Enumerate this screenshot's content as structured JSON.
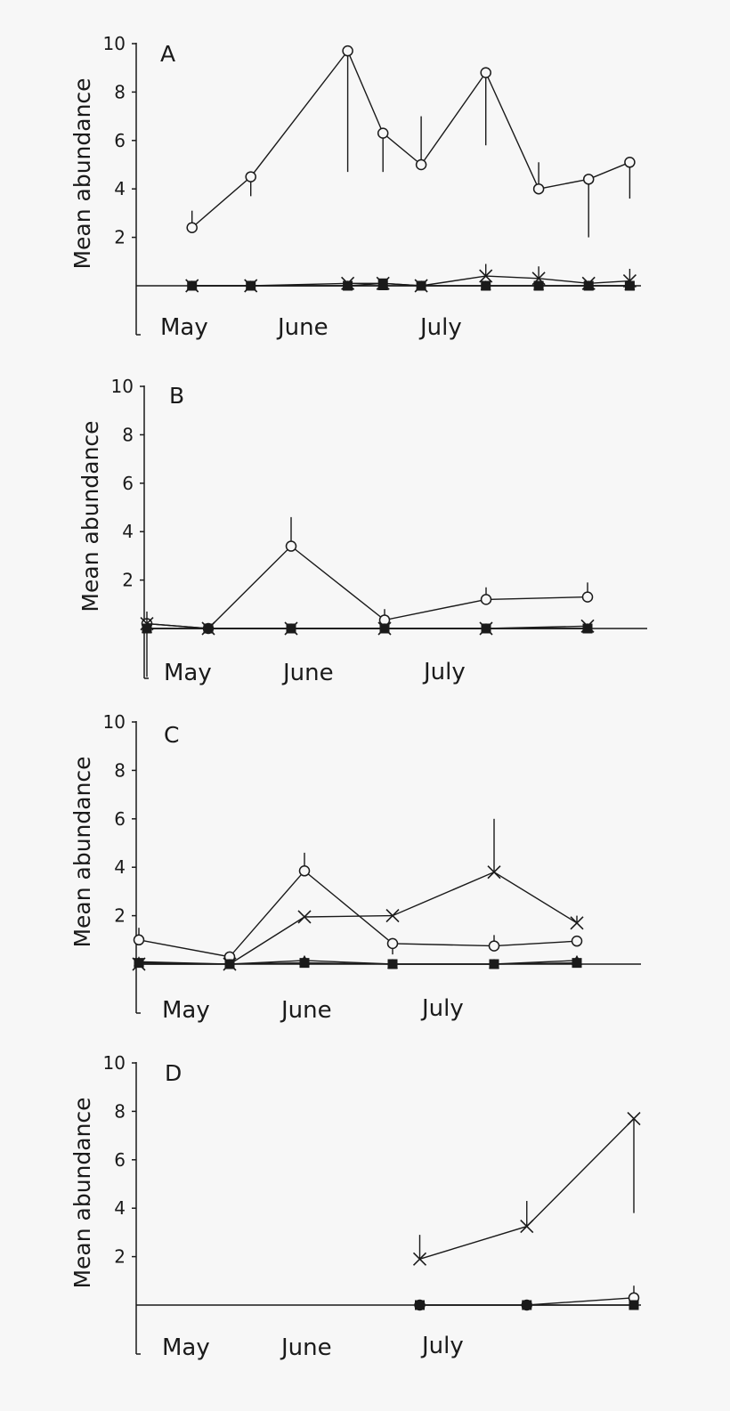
{
  "chart_data": [
    {
      "type": "line",
      "panel": "A",
      "ylabel": "Mean  abundance",
      "yticks": [
        2,
        4,
        6,
        8,
        10
      ],
      "ylim": [
        -2,
        10
      ],
      "months": [
        "May",
        "June",
        "July"
      ],
      "series": [
        {
          "name": "circle",
          "marker": "circle",
          "points": [
            [
              19,
              2.4
            ],
            [
              39,
              4.5
            ],
            [
              72,
              9.7
            ],
            [
              84,
              6.3
            ],
            [
              97,
              5.0
            ],
            [
              119,
              8.8
            ],
            [
              137,
              4.0
            ],
            [
              154,
              4.4
            ],
            [
              168,
              5.1
            ]
          ],
          "errors": [
            [
              19,
              3.1
            ],
            [
              39,
              3.7
            ],
            [
              72,
              4.7
            ],
            [
              84,
              4.7
            ],
            [
              97,
              7.0
            ],
            [
              119,
              5.8
            ],
            [
              137,
              5.1
            ],
            [
              154,
              2.0
            ],
            [
              168,
              3.6
            ]
          ]
        },
        {
          "name": "cross",
          "marker": "x",
          "points": [
            [
              19,
              0
            ],
            [
              39,
              0
            ],
            [
              72,
              0.1
            ],
            [
              84,
              0.1
            ],
            [
              97,
              0
            ],
            [
              119,
              0.4
            ],
            [
              137,
              0.3
            ],
            [
              154,
              0.1
            ],
            [
              168,
              0.2
            ]
          ],
          "errors": [
            [
              119,
              0.9
            ],
            [
              137,
              0.8
            ],
            [
              168,
              0.7
            ]
          ]
        },
        {
          "name": "triangle",
          "marker": "triangle",
          "points": [
            [
              19,
              0
            ],
            [
              39,
              0
            ],
            [
              72,
              0
            ],
            [
              84,
              0
            ],
            [
              97,
              0
            ],
            [
              119,
              0
            ],
            [
              137,
              0
            ],
            [
              154,
              0
            ],
            [
              168,
              0
            ]
          ],
          "errors": []
        },
        {
          "name": "square",
          "marker": "square",
          "points": [
            [
              19,
              0
            ],
            [
              39,
              0
            ],
            [
              72,
              0
            ],
            [
              84,
              0.1
            ],
            [
              97,
              0
            ],
            [
              119,
              0
            ],
            [
              137,
              0
            ],
            [
              154,
              0
            ],
            [
              168,
              0
            ]
          ],
          "errors": []
        }
      ]
    },
    {
      "type": "line",
      "panel": "B",
      "ylabel": "Mean  abundance",
      "yticks": [
        2,
        4,
        6,
        8,
        10
      ],
      "ylim": [
        -2,
        10
      ],
      "months": [
        "May",
        "June",
        "July"
      ],
      "series": [
        {
          "name": "circle",
          "marker": "circle",
          "points": [
            [
              1,
              0.2
            ],
            [
              24,
              0
            ],
            [
              55,
              3.4
            ],
            [
              90,
              0.35
            ],
            [
              128,
              1.2
            ],
            [
              166,
              1.3
            ]
          ],
          "errors": [
            [
              1,
              -2.0
            ],
            [
              55,
              4.6
            ],
            [
              90,
              0.8
            ],
            [
              128,
              1.7
            ],
            [
              166,
              1.9
            ]
          ]
        },
        {
          "name": "cross",
          "marker": "x",
          "points": [
            [
              1,
              0.2
            ],
            [
              24,
              0
            ],
            [
              55,
              0
            ],
            [
              90,
              0
            ],
            [
              128,
              0
            ],
            [
              166,
              0.1
            ]
          ],
          "errors": [
            [
              1,
              0.7
            ]
          ]
        },
        {
          "name": "triangle",
          "marker": "triangle",
          "points": [
            [
              1,
              0
            ],
            [
              24,
              0
            ],
            [
              55,
              0
            ],
            [
              90,
              0
            ],
            [
              128,
              0
            ],
            [
              166,
              0
            ]
          ],
          "errors": []
        },
        {
          "name": "square",
          "marker": "square",
          "points": [
            [
              1,
              0
            ],
            [
              24,
              0
            ],
            [
              55,
              0
            ],
            [
              90,
              0
            ],
            [
              128,
              0
            ],
            [
              166,
              0
            ]
          ],
          "errors": []
        }
      ]
    },
    {
      "type": "line",
      "panel": "C",
      "ylabel": "Mean  abundance",
      "yticks": [
        2,
        4,
        6,
        8,
        10
      ],
      "ylim": [
        -2,
        10
      ],
      "months": [
        "May",
        "June",
        "July"
      ],
      "series": [
        {
          "name": "circle",
          "marker": "circle",
          "points": [
            [
              1,
              1.0
            ],
            [
              35,
              0.3
            ],
            [
              63,
              3.85
            ],
            [
              96,
              0.85
            ],
            [
              134,
              0.75
            ],
            [
              165,
              0.95
            ]
          ],
          "errors": [
            [
              1,
              1.5
            ],
            [
              63,
              4.6
            ],
            [
              96,
              0.4
            ],
            [
              134,
              1.2
            ]
          ]
        },
        {
          "name": "cross",
          "marker": "x",
          "points": [
            [
              1,
              0
            ],
            [
              35,
              0
            ],
            [
              63,
              1.95
            ],
            [
              96,
              2.0
            ],
            [
              134,
              3.8
            ],
            [
              165,
              1.7
            ]
          ],
          "errors": [
            [
              134,
              6.0
            ],
            [
              165,
              2.0
            ]
          ]
        },
        {
          "name": "triangle",
          "marker": "triangle",
          "points": [
            [
              1,
              0.1
            ],
            [
              35,
              0
            ],
            [
              63,
              0.15
            ],
            [
              96,
              0
            ],
            [
              134,
              0
            ],
            [
              165,
              0.15
            ]
          ],
          "errors": []
        },
        {
          "name": "square",
          "marker": "square",
          "points": [
            [
              1,
              0.05
            ],
            [
              35,
              0
            ],
            [
              63,
              0.05
            ],
            [
              96,
              0
            ],
            [
              134,
              0
            ],
            [
              165,
              0.05
            ]
          ],
          "errors": []
        }
      ]
    },
    {
      "type": "line",
      "panel": "D",
      "ylabel": "Mean  abundance",
      "yticks": [
        2,
        4,
        6,
        8,
        10
      ],
      "ylim": [
        -2,
        10
      ],
      "months": [
        "May",
        "June",
        "July"
      ],
      "series": [
        {
          "name": "cross",
          "marker": "x",
          "points": [
            [
              98,
              1.9
            ],
            [
              135,
              3.25
            ],
            [
              172,
              7.7
            ]
          ],
          "errors": [
            [
              98,
              2.9
            ],
            [
              135,
              4.3
            ],
            [
              172,
              3.8
            ]
          ]
        },
        {
          "name": "circle",
          "marker": "circle",
          "points": [
            [
              98,
              0
            ],
            [
              135,
              0
            ],
            [
              172,
              0.3
            ]
          ],
          "errors": [
            [
              172,
              0.8
            ]
          ]
        },
        {
          "name": "square",
          "marker": "square",
          "points": [
            [
              98,
              0
            ],
            [
              135,
              0
            ],
            [
              172,
              0
            ]
          ],
          "errors": []
        }
      ]
    }
  ]
}
